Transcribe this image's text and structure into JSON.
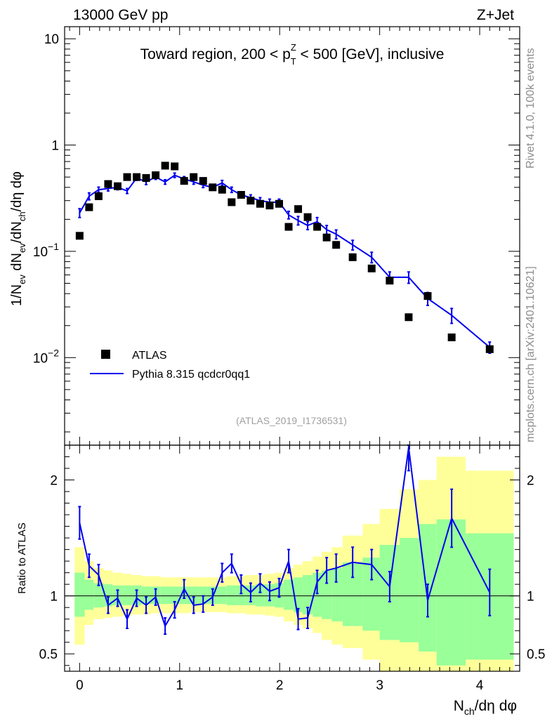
{
  "header": {
    "left": "13000 GeV pp",
    "right": "Z+Jet"
  },
  "colors": {
    "data": "#000000",
    "mc": "#0000ee",
    "band_inner": "#99ff99",
    "band_outer": "#ffff99",
    "frame": "#000000",
    "side_text": "#8c8c8c"
  },
  "chart_data": [
    {
      "type": "scatter",
      "name": "main",
      "title_parts": {
        "prefix": "Toward region, 200 < p",
        "sup": "Z",
        "sub": "T",
        "suffix": " < 500 [GeV], inclusive"
      },
      "ylabel": "1/N_ev dN_ev/dN_ch/dη dφ",
      "yscale": "log",
      "ylim": [
        0.0015,
        13
      ],
      "xlim": [
        -0.15,
        4.4
      ],
      "y_ticks": [
        {
          "value": 0.01,
          "label": "10^-2"
        },
        {
          "value": 0.1,
          "label": "10^-1"
        },
        {
          "value": 1,
          "label": "1"
        },
        {
          "value": 10,
          "label": "10"
        }
      ],
      "legend": {
        "position": "bottom-left",
        "entries": [
          {
            "label": "ATLAS",
            "symbol": "square"
          },
          {
            "label": "Pythia 8.315 qcdcr0qq1",
            "symbol": "line"
          }
        ]
      },
      "watermark": "(ATLAS_2019_I1736531)",
      "series": [
        {
          "name": "ATLAS",
          "x": [
            0.0,
            0.095,
            0.19,
            0.285,
            0.38,
            0.475,
            0.57,
            0.665,
            0.76,
            0.855,
            0.95,
            1.045,
            1.14,
            1.235,
            1.33,
            1.425,
            1.52,
            1.615,
            1.71,
            1.805,
            1.9,
            1.995,
            2.09,
            2.185,
            2.28,
            2.375,
            2.47,
            2.565,
            2.73,
            2.92,
            3.1,
            3.29,
            3.48,
            3.72,
            4.1
          ],
          "values": [
            0.14,
            0.26,
            0.33,
            0.43,
            0.41,
            0.5,
            0.5,
            0.49,
            0.52,
            0.64,
            0.63,
            0.46,
            0.5,
            0.46,
            0.4,
            0.38,
            0.29,
            0.34,
            0.3,
            0.28,
            0.27,
            0.28,
            0.17,
            0.25,
            0.21,
            0.17,
            0.135,
            0.115,
            0.088,
            0.069,
            0.053,
            0.024,
            0.038,
            0.0155,
            0.012
          ]
        },
        {
          "name": "Pythia 8.315 qcdcr0qq1",
          "x": [
            0.0,
            0.095,
            0.19,
            0.285,
            0.38,
            0.475,
            0.57,
            0.665,
            0.76,
            0.855,
            0.95,
            1.045,
            1.14,
            1.235,
            1.33,
            1.425,
            1.52,
            1.615,
            1.71,
            1.805,
            1.9,
            1.995,
            2.09,
            2.185,
            2.28,
            2.375,
            2.47,
            2.565,
            2.73,
            2.92,
            3.1,
            3.29,
            3.48,
            3.72,
            4.1
          ],
          "values": [
            0.23,
            0.33,
            0.38,
            0.39,
            0.4,
            0.37,
            0.49,
            0.45,
            0.5,
            0.45,
            0.52,
            0.48,
            0.45,
            0.42,
            0.4,
            0.44,
            0.38,
            0.34,
            0.32,
            0.3,
            0.29,
            0.29,
            0.22,
            0.195,
            0.175,
            0.19,
            0.16,
            0.145,
            0.115,
            0.088,
            0.057,
            0.057,
            0.036,
            0.025,
            0.0125
          ],
          "errors": [
            0.022,
            0.025,
            0.022,
            0.02,
            0.02,
            0.02,
            0.025,
            0.025,
            0.025,
            0.022,
            0.025,
            0.025,
            0.022,
            0.022,
            0.02,
            0.025,
            0.022,
            0.022,
            0.02,
            0.02,
            0.02,
            0.02,
            0.018,
            0.018,
            0.015,
            0.018,
            0.015,
            0.014,
            0.012,
            0.01,
            0.007,
            0.007,
            0.005,
            0.004,
            0.0015
          ]
        }
      ]
    },
    {
      "type": "line",
      "name": "ratio",
      "xlabel": "N_ch/dη dφ",
      "ylabel": "Ratio to ATLAS",
      "ylim": [
        0.35,
        2.3
      ],
      "xlim": [
        -0.15,
        4.4
      ],
      "x_ticks": [
        0,
        1,
        2,
        3,
        4
      ],
      "y_ticks": [
        0.5,
        1,
        2
      ],
      "reference_line": 1,
      "bands": {
        "edges": [
          -0.05,
          0.05,
          0.14,
          0.24,
          0.33,
          0.43,
          0.52,
          0.62,
          0.71,
          0.81,
          0.9,
          1.0,
          1.1,
          1.19,
          1.28,
          1.38,
          1.47,
          1.57,
          1.66,
          1.76,
          1.85,
          1.95,
          2.04,
          2.14,
          2.23,
          2.33,
          2.42,
          2.52,
          2.63,
          2.83,
          3.0,
          3.2,
          3.39,
          3.57,
          3.86,
          4.34
        ],
        "inner_low": [
          0.82,
          0.88,
          0.9,
          0.91,
          0.92,
          0.92,
          0.92,
          0.93,
          0.93,
          0.93,
          0.93,
          0.93,
          0.93,
          0.93,
          0.93,
          0.93,
          0.92,
          0.92,
          0.92,
          0.91,
          0.91,
          0.9,
          0.88,
          0.86,
          0.84,
          0.82,
          0.8,
          0.78,
          0.74,
          0.7,
          0.62,
          0.6,
          0.52,
          0.4,
          0.45
        ],
        "inner_high": [
          1.2,
          1.14,
          1.11,
          1.1,
          1.09,
          1.09,
          1.09,
          1.08,
          1.08,
          1.08,
          1.08,
          1.08,
          1.08,
          1.08,
          1.08,
          1.08,
          1.09,
          1.09,
          1.09,
          1.1,
          1.1,
          1.11,
          1.14,
          1.16,
          1.18,
          1.2,
          1.22,
          1.24,
          1.29,
          1.33,
          1.44,
          1.5,
          1.62,
          1.66,
          1.54
        ],
        "outer_low": [
          0.58,
          0.75,
          0.8,
          0.81,
          0.82,
          0.83,
          0.84,
          0.84,
          0.85,
          0.85,
          0.85,
          0.85,
          0.86,
          0.86,
          0.86,
          0.86,
          0.85,
          0.85,
          0.84,
          0.84,
          0.83,
          0.82,
          0.78,
          0.75,
          0.72,
          0.68,
          0.62,
          0.58,
          0.55,
          0.45,
          0.35,
          0.35,
          0.35,
          0.35,
          0.35
        ],
        "outer_high": [
          1.42,
          1.3,
          1.24,
          1.22,
          1.2,
          1.19,
          1.18,
          1.17,
          1.17,
          1.16,
          1.16,
          1.16,
          1.16,
          1.16,
          1.16,
          1.16,
          1.17,
          1.17,
          1.18,
          1.18,
          1.19,
          1.2,
          1.24,
          1.27,
          1.3,
          1.34,
          1.38,
          1.42,
          1.52,
          1.62,
          1.75,
          1.92,
          2.0,
          2.2,
          2.08
        ]
      },
      "series": [
        {
          "name": "Pythia 8.315 qcdcr0qq1 / ATLAS",
          "x": [
            0.0,
            0.095,
            0.19,
            0.285,
            0.38,
            0.475,
            0.57,
            0.665,
            0.76,
            0.855,
            0.95,
            1.045,
            1.14,
            1.235,
            1.33,
            1.425,
            1.52,
            1.615,
            1.71,
            1.805,
            1.9,
            1.995,
            2.09,
            2.185,
            2.28,
            2.375,
            2.47,
            2.565,
            2.73,
            2.92,
            3.1,
            3.29,
            3.48,
            3.72,
            4.1
          ],
          "values": [
            1.63,
            1.26,
            1.18,
            0.92,
            0.98,
            0.8,
            0.98,
            0.92,
            0.99,
            0.74,
            0.88,
            1.06,
            0.92,
            0.93,
            0.99,
            1.2,
            1.28,
            1.1,
            1.03,
            1.11,
            1.04,
            1.07,
            1.3,
            0.8,
            0.81,
            1.12,
            1.22,
            1.24,
            1.29,
            1.27,
            1.08,
            2.28,
            0.96,
            1.67,
            1.03
          ],
          "errors": [
            0.14,
            0.1,
            0.09,
            0.07,
            0.07,
            0.08,
            0.07,
            0.07,
            0.07,
            0.07,
            0.07,
            0.08,
            0.07,
            0.07,
            0.07,
            0.08,
            0.08,
            0.08,
            0.08,
            0.08,
            0.08,
            0.08,
            0.1,
            0.09,
            0.09,
            0.1,
            0.11,
            0.12,
            0.13,
            0.13,
            0.13,
            0.2,
            0.14,
            0.25,
            0.2
          ]
        }
      ]
    }
  ],
  "side_labels": {
    "rivet": "Rivet 4.1.0,  100k events",
    "mcplots": "mcplots.cern.ch [arXiv:2401.10621]"
  }
}
